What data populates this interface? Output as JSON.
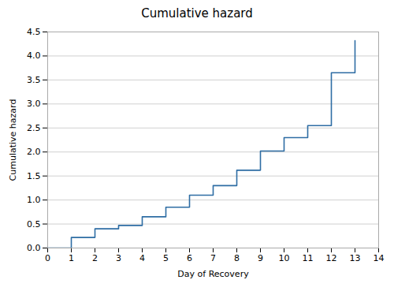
{
  "chart_data": {
    "type": "line",
    "title": "Cumulative hazard",
    "xlabel": "Day of Recovery",
    "ylabel": "Cumulative hazard",
    "x": [
      0,
      1,
      1,
      2,
      2,
      3,
      3,
      4,
      4,
      5,
      5,
      6,
      6,
      7,
      7,
      8,
      8,
      9,
      9,
      10,
      10,
      11,
      11,
      12,
      12,
      13,
      13
    ],
    "values": [
      0.0,
      0.0,
      0.22,
      0.22,
      0.4,
      0.4,
      0.47,
      0.47,
      0.65,
      0.65,
      0.85,
      0.85,
      1.1,
      1.1,
      1.3,
      1.3,
      1.62,
      1.62,
      2.02,
      2.02,
      2.3,
      2.3,
      2.55,
      2.55,
      3.65,
      3.65,
      4.32
    ],
    "color": "#2e6da4",
    "xlim": [
      0,
      14
    ],
    "ylim": [
      0,
      4.5
    ],
    "xticks": [
      0,
      1,
      2,
      3,
      4,
      5,
      6,
      7,
      8,
      9,
      10,
      11,
      12,
      13,
      14
    ],
    "yticks": [
      {
        "value": 0.0,
        "label": "0.0"
      },
      0.5,
      {
        "value": 1.0,
        "label": "1.0"
      },
      1.5,
      {
        "value": 2.0,
        "label": "2.0"
      },
      2.5,
      {
        "value": 3.0,
        "label": "3.0"
      },
      3.5,
      {
        "value": 4.0,
        "label": "4.0"
      },
      4.5
    ],
    "grid": "y"
  }
}
